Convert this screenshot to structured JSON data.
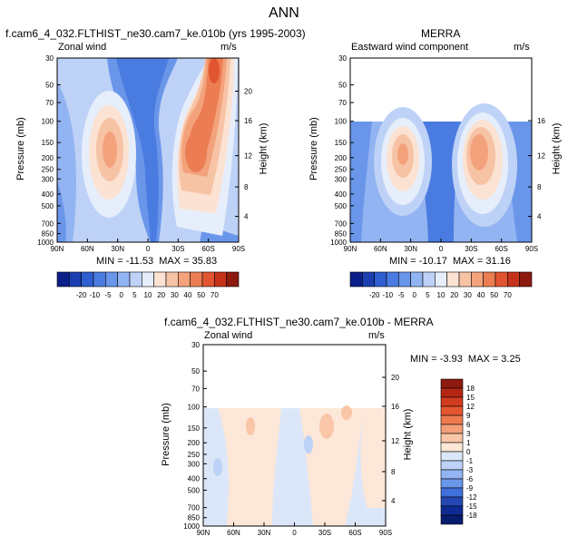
{
  "page_title": "ANN",
  "chart_data": [
    {
      "type": "heatmap",
      "title": "f.cam6_4_032.FLTHIST_ne30.cam7_ke.010b (yrs 1995-2003)",
      "left_label": "Zonal wind",
      "units": "m/s",
      "ylabel": "Pressure (mb)",
      "right_label": "Height (km)",
      "x_ticks": [
        "90N",
        "60N",
        "30N",
        "0",
        "30S",
        "60S",
        "90S"
      ],
      "y_ticks": [
        "30",
        "50",
        "70",
        "100",
        "150",
        "200",
        "250",
        "300",
        "400",
        "500",
        "700",
        "850",
        "1000"
      ],
      "height_ticks": [
        "20",
        "16",
        "12",
        "8",
        "4"
      ],
      "min_label": "MIN = -11.53",
      "max_label": "MAX = 35.83",
      "min": -11.53,
      "max": 35.83,
      "colorbar_labels": [
        "-20",
        "-10",
        "-5",
        "0",
        "5",
        "10",
        "20",
        "30",
        "40",
        "50",
        "70"
      ]
    },
    {
      "type": "heatmap",
      "title": "MERRA",
      "left_label": "Eastward wind component",
      "units": "m/s",
      "ylabel": "Pressure (mb)",
      "right_label": "Height (km)",
      "x_ticks": [
        "90N",
        "60N",
        "30N",
        "0",
        "30S",
        "60S",
        "90S"
      ],
      "y_ticks": [
        "30",
        "50",
        "70",
        "100",
        "150",
        "200",
        "250",
        "300",
        "400",
        "500",
        "700",
        "850",
        "1000"
      ],
      "height_ticks": [
        "16",
        "12",
        "8",
        "4"
      ],
      "min_label": "MIN = -10.17",
      "max_label": "MAX = 31.16",
      "min": -10.17,
      "max": 31.16,
      "colorbar_labels": [
        "-20",
        "-10",
        "-5",
        "0",
        "5",
        "10",
        "20",
        "30",
        "40",
        "50",
        "70"
      ]
    },
    {
      "type": "heatmap",
      "title": "f.cam6_4_032.FLTHIST_ne30.cam7_ke.010b - MERRA",
      "left_label": "Zonal wind",
      "units": "m/s",
      "ylabel": "Pressure (mb)",
      "right_label": "Height (km)",
      "x_ticks": [
        "90N",
        "60N",
        "30N",
        "0",
        "30S",
        "60S",
        "90S"
      ],
      "y_ticks": [
        "30",
        "50",
        "70",
        "100",
        "150",
        "200",
        "250",
        "300",
        "400",
        "500",
        "700",
        "850",
        "1000"
      ],
      "height_ticks": [
        "20",
        "16",
        "12",
        "8",
        "4"
      ],
      "min_label": "MIN = -3.93",
      "max_label": "MAX =   3.25",
      "min": -3.93,
      "max": 3.25,
      "colorbar_labels": [
        "18",
        "15",
        "12",
        "9",
        "6",
        "3",
        "1",
        "0",
        "-1",
        "-3",
        "-6",
        "-9",
        "-12",
        "-15",
        "-18"
      ]
    }
  ],
  "palette": {
    "ens_colors": [
      "#0b1f8a",
      "#1c3fb0",
      "#2f5ed0",
      "#4a7be0",
      "#6a96ea",
      "#93b4f2",
      "#bed2f7",
      "#e6eefb",
      "#fbe2d2",
      "#f7c3a5",
      "#f3a27c",
      "#ec7d52",
      "#e05530",
      "#c5331b",
      "#8c1a0e"
    ],
    "diff_colors": [
      "#8c1a0e",
      "#b42614",
      "#d23c1e",
      "#e4562e",
      "#ee7a50",
      "#f49f7a",
      "#f9c6a8",
      "#fde7d8",
      "#dbe7f9",
      "#bcd2f6",
      "#93b4f2",
      "#6a96ea",
      "#4070dc",
      "#2447b4",
      "#102a94",
      "#081c6e"
    ]
  }
}
